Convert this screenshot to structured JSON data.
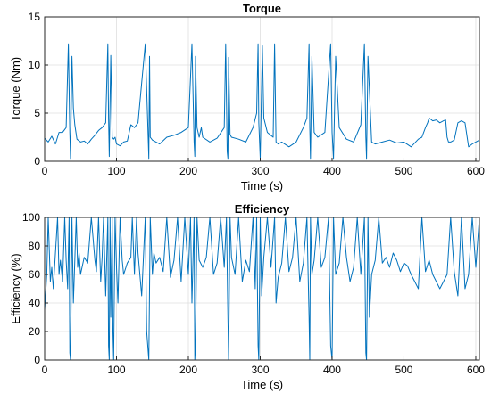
{
  "chart_data": [
    {
      "type": "line",
      "title": "Torque",
      "xlabel": "Time (s)",
      "ylabel": "Torque (Nm)",
      "xlim": [
        0,
        605
      ],
      "ylim": [
        0,
        15
      ],
      "xticks": [
        "0",
        "100",
        "200",
        "300",
        "400",
        "500",
        "600"
      ],
      "yticks": [
        "0",
        "5",
        "10",
        "15"
      ],
      "grid": true,
      "color": "#0072BD",
      "series": [
        {
          "x": [
            0,
            5,
            10,
            15,
            20,
            25,
            30,
            33,
            35,
            36,
            38,
            40,
            42,
            45,
            50,
            55,
            60,
            65,
            70,
            75,
            80,
            85,
            88,
            89,
            90,
            92,
            94,
            96,
            98,
            100,
            105,
            110,
            115,
            120,
            125,
            130,
            140,
            145,
            146,
            147,
            150,
            155,
            160,
            170,
            180,
            190,
            200,
            205,
            208,
            209,
            210,
            212,
            215,
            218,
            220,
            230,
            240,
            250,
            252,
            254,
            255,
            256,
            258,
            260,
            270,
            280,
            290,
            295,
            297,
            298,
            300,
            303,
            305,
            310,
            318,
            320,
            322,
            325,
            330,
            340,
            350,
            360,
            365,
            368,
            369,
            370,
            372,
            375,
            380,
            390,
            398,
            400,
            402,
            405,
            410,
            420,
            430,
            440,
            445,
            447,
            448,
            450,
            455,
            460,
            470,
            480,
            490,
            500,
            510,
            520,
            525,
            530,
            533,
            535,
            540,
            545,
            550,
            555,
            558,
            560,
            562,
            565,
            570,
            575,
            580,
            585,
            590,
            595,
            600,
            605
          ],
          "y": [
            2.4,
            2.0,
            2.6,
            1.8,
            3.0,
            3.0,
            3.5,
            12.2,
            3.0,
            0.3,
            10.9,
            5.5,
            3.8,
            2.3,
            2.0,
            2.1,
            1.8,
            2.3,
            2.7,
            3.2,
            3.5,
            4.0,
            12.2,
            4.5,
            0.5,
            11.0,
            2.5,
            2.3,
            2.5,
            1.8,
            1.6,
            2.0,
            2.1,
            3.8,
            3.5,
            4.0,
            12.2,
            0.3,
            10.9,
            2.5,
            2.2,
            2.0,
            1.8,
            2.5,
            2.7,
            3.0,
            3.5,
            12.2,
            2.0,
            0.5,
            10.9,
            3.5,
            2.5,
            3.5,
            2.5,
            2.0,
            2.4,
            3.5,
            12.2,
            1.0,
            0.3,
            10.8,
            2.8,
            2.5,
            2.3,
            2.0,
            3.5,
            5.0,
            12.2,
            4.0,
            0.3,
            12.0,
            4.5,
            3.0,
            2.5,
            12.2,
            2.0,
            1.8,
            2.0,
            1.5,
            2.0,
            3.5,
            4.5,
            12.2,
            3.5,
            0.3,
            10.9,
            3.0,
            2.5,
            3.0,
            12.2,
            3.0,
            0.3,
            10.9,
            3.5,
            2.3,
            2.0,
            3.8,
            12.2,
            2.5,
            0.3,
            10.9,
            2.0,
            1.8,
            2.0,
            2.2,
            1.9,
            2.0,
            1.5,
            2.3,
            2.5,
            3.5,
            4.0,
            4.5,
            4.2,
            4.3,
            4.0,
            4.2,
            4.3,
            2.5,
            2.0,
            2.0,
            2.2,
            4.0,
            4.2,
            4.0,
            1.5,
            1.8,
            2.0,
            2.2
          ]
        }
      ]
    },
    {
      "type": "line",
      "title": "Efficiency",
      "xlabel": "Time (s)",
      "ylabel": "Efficiency (%)",
      "xlim": [
        0,
        605
      ],
      "ylim": [
        0,
        100
      ],
      "xticks": [
        "0",
        "100",
        "200",
        "300",
        "400",
        "500",
        "600"
      ],
      "yticks": [
        "0",
        "20",
        "40",
        "60",
        "80",
        "100"
      ],
      "grid": true,
      "color": "#0072BD",
      "series": [
        {
          "x": [
            0,
            3,
            5,
            8,
            10,
            12,
            15,
            18,
            20,
            22,
            25,
            28,
            30,
            32,
            34,
            35,
            36,
            38,
            40,
            42,
            44,
            46,
            48,
            50,
            55,
            60,
            65,
            70,
            72,
            75,
            78,
            80,
            82,
            85,
            88,
            89,
            90,
            91,
            92,
            94,
            95,
            96,
            98,
            100,
            102,
            105,
            108,
            110,
            115,
            120,
            122,
            125,
            128,
            130,
            135,
            140,
            142,
            145,
            147,
            150,
            152,
            155,
            160,
            165,
            170,
            175,
            180,
            185,
            190,
            195,
            200,
            203,
            205,
            208,
            209,
            210,
            212,
            215,
            220,
            225,
            230,
            235,
            240,
            245,
            250,
            253,
            255,
            256,
            258,
            260,
            265,
            270,
            275,
            280,
            285,
            290,
            293,
            295,
            297,
            298,
            300,
            302,
            305,
            310,
            315,
            320,
            322,
            325,
            330,
            335,
            340,
            345,
            350,
            355,
            360,
            365,
            368,
            369,
            370,
            372,
            375,
            380,
            385,
            390,
            395,
            398,
            400,
            402,
            405,
            410,
            415,
            420,
            425,
            430,
            435,
            440,
            445,
            447,
            448,
            450,
            452,
            455,
            460,
            465,
            470,
            475,
            480,
            485,
            490,
            495,
            500,
            505,
            510,
            515,
            520,
            525,
            530,
            535,
            540,
            545,
            550,
            555,
            560,
            565,
            570,
            575,
            580,
            585,
            590,
            595,
            600,
            605
          ],
          "y": [
            35,
            60,
            100,
            55,
            65,
            50,
            75,
            100,
            60,
            70,
            55,
            100,
            70,
            50,
            100,
            5,
            0,
            100,
            40,
            70,
            100,
            65,
            75,
            60,
            72,
            68,
            100,
            70,
            62,
            100,
            55,
            72,
            100,
            45,
            100,
            10,
            0,
            100,
            30,
            100,
            20,
            0,
            100,
            65,
            40,
            100,
            70,
            60,
            68,
            72,
            100,
            60,
            100,
            75,
            45,
            100,
            20,
            0,
            100,
            60,
            75,
            68,
            72,
            62,
            100,
            58,
            70,
            100,
            55,
            100,
            60,
            100,
            40,
            100,
            0,
            10,
            100,
            70,
            65,
            72,
            100,
            60,
            68,
            100,
            65,
            100,
            30,
            0,
            100,
            72,
            60,
            100,
            55,
            70,
            62,
            100,
            50,
            100,
            10,
            0,
            100,
            45,
            72,
            100,
            65,
            100,
            40,
            58,
            68,
            100,
            62,
            72,
            100,
            55,
            68,
            100,
            30,
            0,
            100,
            60,
            70,
            100,
            65,
            72,
            100,
            10,
            0,
            100,
            60,
            68,
            100,
            72,
            55,
            65,
            100,
            60,
            100,
            5,
            0,
            100,
            30,
            60,
            70,
            100,
            68,
            72,
            65,
            75,
            70,
            62,
            68,
            66,
            60,
            55,
            50,
            100,
            62,
            70,
            60,
            55,
            50,
            55,
            60,
            100,
            62,
            45,
            100,
            50,
            60,
            100,
            65,
            100
          ]
        }
      ]
    }
  ]
}
